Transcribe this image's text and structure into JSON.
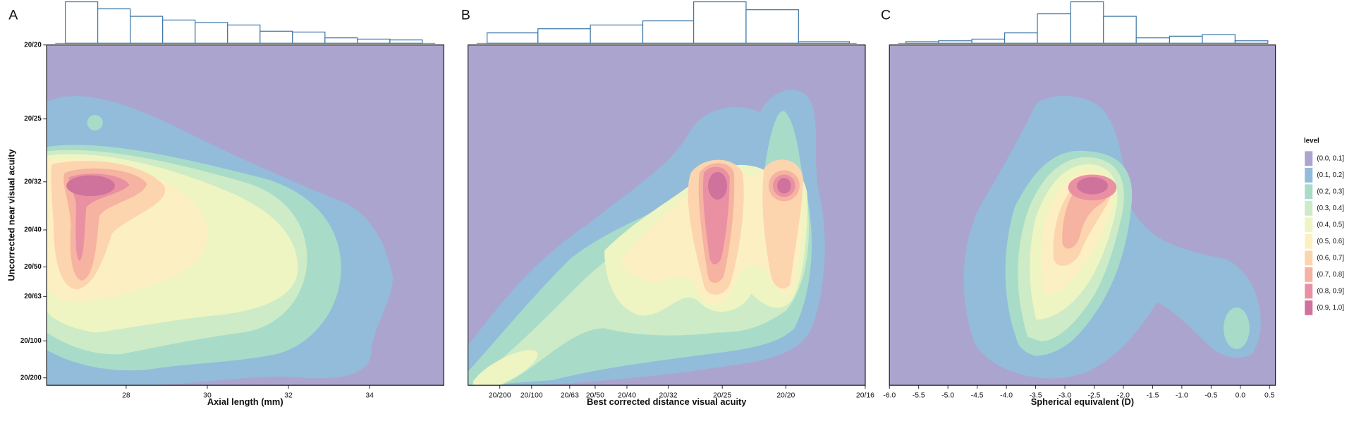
{
  "legend": {
    "title": "level",
    "labels": [
      "(0.0, 0.1]",
      "(0.1, 0.2]",
      "(0.2, 0.3]",
      "(0.3, 0.4]",
      "(0.4, 0.5]",
      "(0.5, 0.6]",
      "(0.6, 0.7]",
      "(0.7, 0.8]",
      "(0.8, 0.9]",
      "(0.9, 1.0]"
    ],
    "colors": [
      "#aba4cf",
      "#93bcda",
      "#a8dcc9",
      "#cdebc6",
      "#eef5c2",
      "#fcf0c3",
      "#fcd5af",
      "#f6b3a1",
      "#e991a2",
      "#cf729c"
    ]
  },
  "chart_data": [
    {
      "type": "density2d",
      "panel": "A",
      "x_label": "Axial length (mm)",
      "y_label": "Uncorrected near visual acuity",
      "xlim": [
        26.04,
        35.83
      ],
      "xticks": [
        28,
        30,
        32,
        34
      ],
      "ylim": [
        0.08,
        1.0
      ],
      "yticks": [
        {
          "value": 1.0,
          "label": "20/20"
        },
        {
          "value": 0.8,
          "label": "20/25"
        },
        {
          "value": 0.63,
          "label": "20/32"
        },
        {
          "value": 0.5,
          "label": "20/40"
        },
        {
          "value": 0.4,
          "label": "20/50"
        },
        {
          "value": 0.32,
          "label": "20/63"
        },
        {
          "value": 0.2,
          "label": "20/100"
        },
        {
          "value": 0.1,
          "label": "20/200"
        }
      ],
      "hist": {
        "bins": [
          26.5,
          27.3,
          28.1,
          28.9,
          29.7,
          30.5,
          31.3,
          32.1,
          32.9,
          33.7,
          34.5,
          35.3
        ],
        "counts": [
          100,
          83,
          65,
          56,
          50,
          44,
          29,
          27,
          13,
          10,
          8
        ]
      }
    },
    {
      "type": "density2d",
      "panel": "B",
      "x_label": "Best corrected distance visual acuity",
      "xlim": [
        0,
        1.25
      ],
      "xticks": [
        {
          "value": 0.1,
          "label": "20/200"
        },
        {
          "value": 0.2,
          "label": "20/100"
        },
        {
          "value": 0.32,
          "label": "20/63"
        },
        {
          "value": 0.4,
          "label": "20/50"
        },
        {
          "value": 0.5,
          "label": "20/40"
        },
        {
          "value": 0.63,
          "label": "20/32"
        },
        {
          "value": 0.8,
          "label": "20/25"
        },
        {
          "value": 1.0,
          "label": "20/20"
        },
        {
          "value": 1.25,
          "label": "20/16"
        }
      ],
      "hist": {
        "bins": [
          0.06,
          0.22,
          0.385,
          0.55,
          0.71,
          0.875,
          1.04,
          1.2
        ],
        "counts": [
          25,
          35,
          44,
          54,
          100,
          81,
          4
        ]
      }
    },
    {
      "type": "density2d",
      "panel": "C",
      "x_label": "Spherical equivalent (D)",
      "xlim": [
        -6.0,
        0.6
      ],
      "xticks": [
        {
          "value": -6,
          "label": "-6.0"
        },
        -5.5,
        {
          "value": -5,
          "label": "-5.0"
        },
        -4.5,
        {
          "value": -4,
          "label": "-4.0"
        },
        -3.5,
        {
          "value": -3,
          "label": "-3.0"
        },
        -2.5,
        {
          "value": -2,
          "label": "-2.0"
        },
        -1.5,
        {
          "value": -1,
          "label": "-1.0"
        },
        -0.5,
        {
          "value": 0,
          "label": "0.0"
        },
        0.5
      ],
      "hist": {
        "bins": [
          -5.72,
          -5.16,
          -4.59,
          -4.03,
          -3.47,
          -2.9,
          -2.34,
          -1.78,
          -1.21,
          -0.65,
          -0.09,
          0.47
        ],
        "counts": [
          4,
          6,
          10,
          25,
          71,
          100,
          65,
          13,
          17,
          21,
          6
        ]
      }
    }
  ]
}
